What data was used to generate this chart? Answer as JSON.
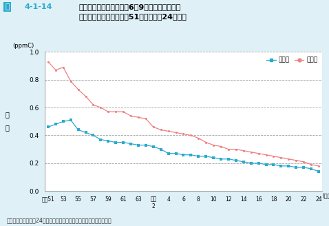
{
  "title_label": "図4-1-14",
  "title_text": "非メタン炭化水素の午前6〜9時における年平均\n値の経年変化推移（昭和51年度〜平成24年度）",
  "ylabel_unit": "(ppmC)",
  "ylabel_kanji": "濃\n度",
  "source": "資料：環境省「平成24年度大気汚染状況について（報道発表資料）」",
  "ylim": [
    0.0,
    1.0
  ],
  "yticks": [
    0.0,
    0.2,
    0.4,
    0.6,
    0.8,
    1.0
  ],
  "xtick_labels": [
    "昭和51",
    "53",
    "55",
    "57",
    "59",
    "61",
    "63",
    "平成\n2",
    "4",
    "6",
    "8",
    "10",
    "12",
    "14",
    "16",
    "18",
    "20",
    "22",
    "24"
  ],
  "general_color": "#2aaace",
  "road_color": "#f08080",
  "background_color": "#dff0f7",
  "general_label": "一般局",
  "road_label": "自排局",
  "general_data": [
    0.46,
    0.48,
    0.5,
    0.51,
    0.44,
    0.42,
    0.4,
    0.37,
    0.36,
    0.35,
    0.35,
    0.34,
    0.33,
    0.33,
    0.32,
    0.3,
    0.27,
    0.27,
    0.26,
    0.26,
    0.25,
    0.25,
    0.24,
    0.23,
    0.23,
    0.22,
    0.21,
    0.2,
    0.2,
    0.19,
    0.19,
    0.18,
    0.18,
    0.17,
    0.17,
    0.16,
    0.14
  ],
  "road_data": [
    0.93,
    0.87,
    0.89,
    0.79,
    0.73,
    0.68,
    0.62,
    0.6,
    0.57,
    0.57,
    0.57,
    0.54,
    0.53,
    0.52,
    0.46,
    0.44,
    0.43,
    0.42,
    0.41,
    0.4,
    0.38,
    0.35,
    0.33,
    0.32,
    0.3,
    0.3,
    0.29,
    0.28,
    0.27,
    0.26,
    0.25,
    0.24,
    0.23,
    0.22,
    0.21,
    0.19,
    0.18
  ]
}
